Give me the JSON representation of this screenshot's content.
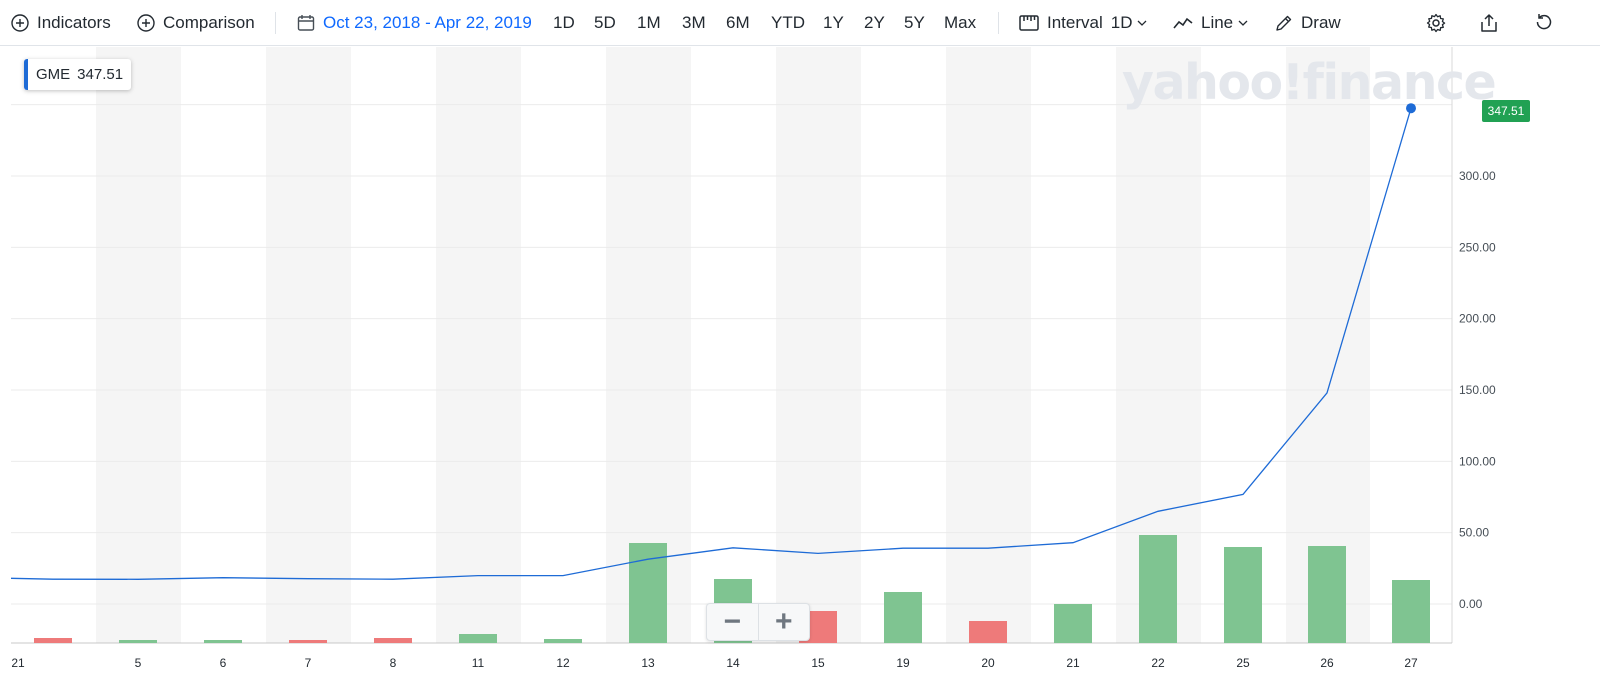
{
  "toolbar": {
    "indicators_label": "Indicators",
    "comparison_label": "Comparison",
    "date_range": "Oct 23, 2018 - Apr 22, 2019",
    "ranges": [
      "1D",
      "5D",
      "1M",
      "3M",
      "6M",
      "YTD",
      "1Y",
      "2Y",
      "5Y",
      "Max"
    ],
    "interval_label": "Interval",
    "interval_value": "1D",
    "chart_type_label": "Line",
    "draw_label": "Draw"
  },
  "legend": {
    "symbol": "GME",
    "value": "347.51"
  },
  "price_tag": "347.51",
  "watermark": "yahoo!finance",
  "zoom": {
    "minus": "−",
    "plus": "+"
  },
  "colors": {
    "line": "#1e6bd6",
    "up": "#7fc491",
    "down": "#ee7a7a",
    "price_tag": "#21a153",
    "accent": "#0f69ff"
  },
  "icons": [
    "plus-circle-icon",
    "calendar-icon",
    "ruler-icon",
    "line-chart-icon",
    "pencil-icon",
    "gear-icon",
    "share-icon",
    "reset-icon",
    "chevron-down-icon"
  ],
  "chart_data": {
    "type": "line",
    "title": "",
    "xlabel": "",
    "ylabel": "",
    "ylim": [
      -27,
      382
    ],
    "y_ticks": [
      0,
      50,
      100,
      150,
      200,
      250,
      300
    ],
    "y_tick_labels": [
      "0.00",
      "50.00",
      "100.00",
      "150.00",
      "200.00",
      "250.00",
      "300.00"
    ],
    "categories": [
      "21",
      "5",
      "6",
      "7",
      "8",
      "11",
      "12",
      "13",
      "14",
      "15",
      "19",
      "20",
      "21",
      "22",
      "25",
      "26",
      "27"
    ],
    "x_tick_labels": [
      "21",
      "",
      "5",
      "6",
      "7",
      "8",
      "11",
      "12",
      "13",
      "14",
      "15",
      "19",
      "20",
      "21",
      "22",
      "25",
      "26",
      "27"
    ],
    "series": [
      {
        "values": [
          17.4,
          17.3,
          18.4,
          17.7,
          17.4,
          19.9,
          19.9,
          31.4,
          39.4,
          35.5,
          39.1,
          39.1,
          43.0,
          65.0,
          76.8,
          148.0,
          347.51
        ]
      }
    ],
    "volume_bars": {
      "direction": [
        "down",
        "up",
        "up",
        "down",
        "down",
        "up",
        "up",
        "up",
        "up",
        "down",
        "up",
        "down",
        "up",
        "up",
        "up",
        "up",
        "up"
      ],
      "relative_height": [
        0.05,
        0.03,
        0.03,
        0.03,
        0.05,
        0.09,
        0.04,
        1.0,
        0.64,
        0.32,
        0.51,
        0.22,
        0.39,
        1.08,
        0.96,
        0.97,
        0.63
      ]
    },
    "last_value": 347.51,
    "grid": true,
    "legend_position": "top-left"
  }
}
